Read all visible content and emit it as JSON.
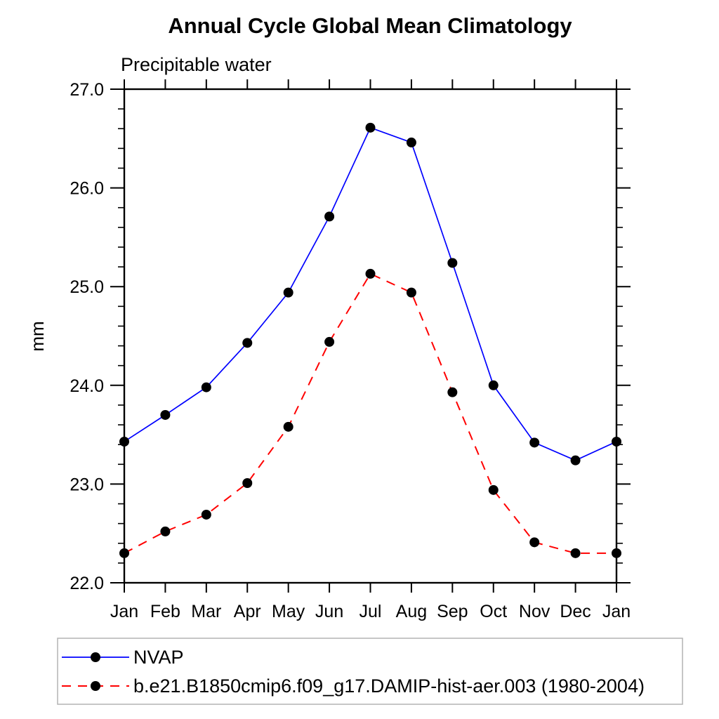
{
  "page": {
    "background_color": "#ffffff"
  },
  "chart_data": {
    "type": "line",
    "title": "Annual Cycle Global Mean Climatology",
    "subtitle": "Precipitable water",
    "ylabel": "mm",
    "xlabel": "",
    "categories": [
      "Jan",
      "Feb",
      "Mar",
      "Apr",
      "May",
      "Jun",
      "Jul",
      "Aug",
      "Sep",
      "Oct",
      "Nov",
      "Dec",
      "Jan"
    ],
    "ylim": [
      22.0,
      27.0
    ],
    "y_major_step": 1.0,
    "y_minor_step": 0.2,
    "y_tick_decimals": 1,
    "grid": false,
    "axis_color": "#000000",
    "legend_position": "bottom-left",
    "legend_border_color": "#b3b3b3",
    "marker": {
      "shape": "circle",
      "color": "#000000"
    },
    "series": [
      {
        "name": "NVAP",
        "color": "#0000ff",
        "line_style": "solid",
        "values": [
          23.43,
          23.7,
          23.98,
          24.43,
          24.94,
          25.71,
          26.61,
          26.46,
          25.24,
          24.0,
          23.42,
          23.24,
          23.43
        ]
      },
      {
        "name": "b.e21.B1850cmip6.f09_g17.DAMIP-hist-aer.003 (1980-2004)",
        "color": "#ff0000",
        "line_style": "dashed",
        "values": [
          22.3,
          22.52,
          22.69,
          23.01,
          23.58,
          24.44,
          25.13,
          24.94,
          23.93,
          22.94,
          22.41,
          22.3,
          22.3
        ]
      }
    ]
  }
}
